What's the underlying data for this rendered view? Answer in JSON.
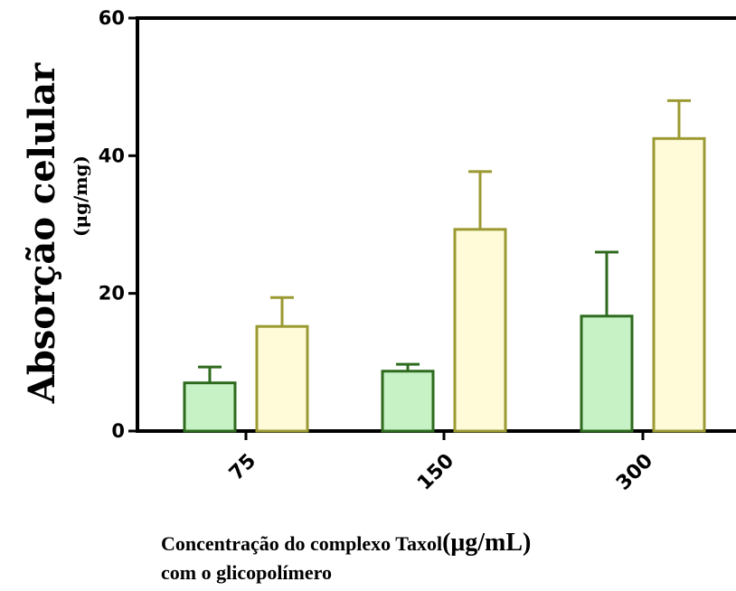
{
  "chart_data": {
    "type": "bar",
    "ylabel": "Absorção celular",
    "ylabel_unit": "(μg/mg)",
    "xlabel_line1": "Concentração do complexo Taxol",
    "xlabel_unit": "(μg/mL)",
    "xlabel_line2": "com o glicopolímero",
    "categories": [
      "75",
      "150",
      "300"
    ],
    "ylim": [
      0,
      60
    ],
    "yticks": [
      "0",
      "20",
      "40",
      "60"
    ],
    "grid": false,
    "series": [
      {
        "color": "#c6f2c6",
        "stroke": "#2e6b1e",
        "values": [
          7,
          8.7,
          16.7
        ],
        "errors": [
          2.3,
          1.0,
          9.3
        ]
      },
      {
        "color": "#fffbd9",
        "stroke": "#9b9a32",
        "values": [
          15.2,
          29.3,
          42.5
        ],
        "errors": [
          4.2,
          8.4,
          5.5
        ]
      }
    ]
  }
}
